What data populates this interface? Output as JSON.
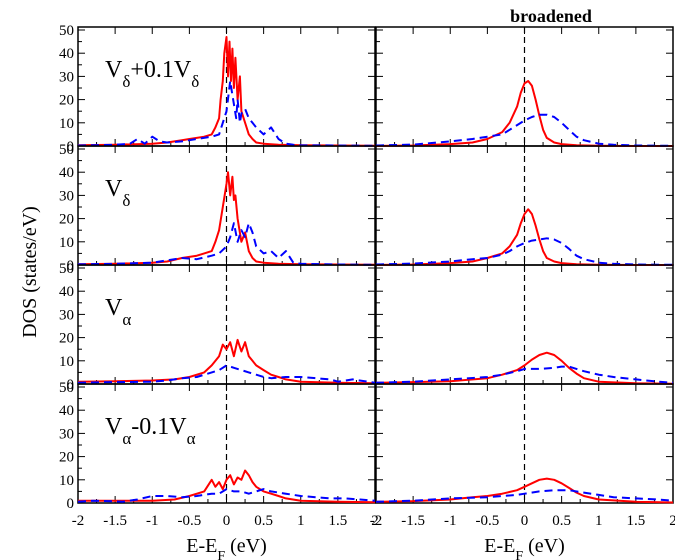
{
  "chart_data": {
    "type": "line",
    "title": "broadened",
    "xlabel": "E-E",
    "xlabel_sub": "F",
    "xlabel_unit": " (eV)",
    "ylabel": "DOS  (states/eV)",
    "xlim": [
      -2,
      2
    ],
    "ylim": [
      0,
      50
    ],
    "xticks": [
      -2,
      -1.5,
      -1,
      -0.5,
      0,
      0.5,
      1,
      1.5,
      2
    ],
    "yticks": [
      0,
      10,
      20,
      30,
      40,
      50
    ],
    "fermi_line": {
      "x": 0,
      "style": "dashed",
      "color": "#000000"
    },
    "colors": {
      "red": "#ff0000",
      "blue": "#0000ff"
    },
    "row_labels": [
      {
        "main": "V",
        "sub": "δ",
        "suffix": "+0.1V",
        "suffix_sub": "δ"
      },
      {
        "main": "V",
        "sub": "δ",
        "suffix": "",
        "suffix_sub": ""
      },
      {
        "main": "V",
        "sub": "α",
        "suffix": "",
        "suffix_sub": ""
      },
      {
        "main": "V",
        "sub": "α",
        "suffix": "-0.1V",
        "suffix_sub": "α"
      }
    ],
    "panels": [
      {
        "row": 0,
        "col": 0,
        "series": [
          {
            "color": "red",
            "style": "solid",
            "x": [
              -2,
              -1.5,
              -1,
              -0.8,
              -0.6,
              -0.5,
              -0.4,
              -0.3,
              -0.2,
              -0.15,
              -0.1,
              -0.08,
              -0.05,
              -0.03,
              0,
              0.02,
              0.04,
              0.06,
              0.08,
              0.1,
              0.12,
              0.15,
              0.18,
              0.2,
              0.25,
              0.3,
              0.35,
              0.4,
              0.5,
              0.7,
              1,
              1.5,
              2
            ],
            "y": [
              0.3,
              0.5,
              1,
              1.5,
              2.5,
              3,
              3.5,
              4,
              5,
              8,
              12,
              20,
              28,
              40,
              47,
              30,
              45,
              28,
              42,
              25,
              38,
              20,
              30,
              15,
              10,
              5,
              3,
              1.5,
              1,
              0.5,
              0.3,
              0.2,
              0.1
            ]
          },
          {
            "color": "blue",
            "style": "dashed",
            "x": [
              -2,
              -1.5,
              -1.3,
              -1.2,
              -1.1,
              -1,
              -0.9,
              -0.8,
              -0.6,
              -0.4,
              -0.2,
              -0.1,
              -0.05,
              0,
              0.05,
              0.08,
              0.1,
              0.13,
              0.15,
              0.18,
              0.2,
              0.25,
              0.3,
              0.35,
              0.4,
              0.5,
              0.6,
              0.7,
              0.8,
              0.9,
              1,
              1.5,
              2
            ],
            "y": [
              0.2,
              0.5,
              1,
              3,
              1,
              4,
              2,
              1.5,
              2,
              3,
              4,
              5,
              10,
              15,
              28,
              22,
              18,
              12,
              20,
              10,
              14,
              16,
              12,
              10,
              8,
              5,
              8,
              3,
              1,
              0.5,
              0.3,
              0.2,
              0.1
            ]
          }
        ]
      },
      {
        "row": 0,
        "col": 1,
        "series": [
          {
            "color": "red",
            "style": "solid",
            "x": [
              -2,
              -1.5,
              -1,
              -0.7,
              -0.5,
              -0.3,
              -0.2,
              -0.1,
              -0.05,
              0,
              0.05,
              0.1,
              0.15,
              0.2,
              0.25,
              0.3,
              0.4,
              0.5,
              0.7,
              1,
              1.5,
              2
            ],
            "y": [
              0,
              0.2,
              0.8,
              1.5,
              3,
              6,
              10,
              17,
              23,
              27,
              28,
              26,
              20,
              13,
              7,
              3.5,
              1.5,
              0.8,
              0.3,
              0.1,
              0,
              0
            ]
          },
          {
            "color": "blue",
            "style": "dashed",
            "x": [
              -2,
              -1.5,
              -1,
              -0.7,
              -0.5,
              -0.3,
              -0.2,
              -0.1,
              0,
              0.1,
              0.2,
              0.3,
              0.4,
              0.5,
              0.6,
              0.7,
              0.8,
              1,
              1.2,
              1.5,
              2
            ],
            "y": [
              0.2,
              0.6,
              2,
              3,
              4,
              5,
              7,
              9,
              11,
              12.5,
              13.5,
              13.5,
              12.5,
              10,
              7,
              4,
              2.5,
              1,
              0.5,
              0.2,
              0.1
            ]
          }
        ]
      },
      {
        "row": 1,
        "col": 0,
        "series": [
          {
            "color": "red",
            "style": "solid",
            "x": [
              -2,
              -1.5,
              -1,
              -0.8,
              -0.6,
              -0.4,
              -0.3,
              -0.2,
              -0.15,
              -0.1,
              -0.05,
              0,
              0.02,
              0.05,
              0.08,
              0.1,
              0.12,
              0.15,
              0.2,
              0.25,
              0.3,
              0.35,
              0.4,
              0.5,
              0.7,
              1,
              1.5,
              2
            ],
            "y": [
              0.3,
              0.5,
              1,
              1.5,
              3,
              4,
              5,
              6,
              10,
              15,
              25,
              35,
              40,
              30,
              38,
              28,
              30,
              20,
              10,
              14,
              6,
              3,
              1.5,
              1,
              0.5,
              0.3,
              0.2,
              0.1
            ]
          },
          {
            "color": "blue",
            "style": "dashed",
            "x": [
              -2,
              -1.5,
              -1,
              -0.8,
              -0.6,
              -0.4,
              -0.2,
              -0.1,
              0,
              0.05,
              0.1,
              0.15,
              0.2,
              0.25,
              0.3,
              0.35,
              0.4,
              0.5,
              0.6,
              0.7,
              0.8,
              0.9,
              1,
              1.5,
              2
            ],
            "y": [
              0.3,
              0.5,
              1,
              2,
              3,
              2.5,
              4,
              5,
              8,
              12,
              18,
              10,
              15,
              12,
              18,
              14,
              8,
              5,
              6,
              3,
              6,
              1,
              0.5,
              0.2,
              0.1
            ]
          }
        ]
      },
      {
        "row": 1,
        "col": 1,
        "series": [
          {
            "color": "red",
            "style": "solid",
            "x": [
              -2,
              -1.5,
              -1,
              -0.7,
              -0.5,
              -0.3,
              -0.2,
              -0.1,
              -0.05,
              0,
              0.05,
              0.1,
              0.15,
              0.2,
              0.25,
              0.3,
              0.4,
              0.5,
              0.7,
              1,
              1.5,
              2
            ],
            "y": [
              0,
              0.2,
              0.8,
              1.5,
              3,
              5,
              8,
              13,
              18,
              22,
              24,
              22,
              17,
              11,
              6,
              3,
              1.5,
              0.8,
              0.3,
              0.1,
              0,
              0
            ]
          },
          {
            "color": "blue",
            "style": "dashed",
            "x": [
              -2,
              -1.5,
              -1,
              -0.7,
              -0.5,
              -0.3,
              -0.2,
              -0.1,
              0,
              0.1,
              0.2,
              0.3,
              0.4,
              0.5,
              0.6,
              0.7,
              0.8,
              1,
              1.2,
              1.5,
              2
            ],
            "y": [
              0.2,
              0.6,
              1.5,
              2.5,
              3,
              4.5,
              6,
              8,
              9.5,
              10.5,
              11,
              11.5,
              11,
              9.5,
              7,
              4,
              2.5,
              1,
              0.5,
              0.2,
              0.1
            ]
          }
        ]
      },
      {
        "row": 2,
        "col": 0,
        "series": [
          {
            "color": "red",
            "style": "solid",
            "x": [
              -2,
              -1.5,
              -1,
              -0.7,
              -0.5,
              -0.3,
              -0.2,
              -0.1,
              -0.05,
              0,
              0.05,
              0.1,
              0.15,
              0.2,
              0.25,
              0.3,
              0.35,
              0.4,
              0.5,
              0.6,
              0.7,
              0.8,
              1,
              1.5,
              2
            ],
            "y": [
              1,
              1.2,
              1.5,
              2,
              3,
              5,
              8,
              12,
              17,
              15,
              18,
              12,
              19,
              14,
              18,
              12,
              10,
              8,
              6,
              4,
              3,
              2,
              1,
              0.5,
              0.3
            ]
          },
          {
            "color": "blue",
            "style": "dashed",
            "x": [
              -2,
              -1.5,
              -1,
              -0.8,
              -0.6,
              -0.4,
              -0.2,
              -0.1,
              0,
              0.1,
              0.2,
              0.3,
              0.4,
              0.5,
              0.6,
              0.8,
              1,
              1.2,
              1.4,
              1.5,
              1.7,
              1.9,
              2
            ],
            "y": [
              0.5,
              0.8,
              1,
              1.5,
              2.5,
              3,
              5,
              6,
              8,
              7,
              6,
              5,
              4,
              3,
              2.5,
              3,
              3,
              2.5,
              2,
              1,
              2,
              1,
              0.5
            ]
          }
        ]
      },
      {
        "row": 2,
        "col": 1,
        "series": [
          {
            "color": "red",
            "style": "solid",
            "x": [
              -2,
              -1.5,
              -1,
              -0.5,
              -0.3,
              -0.1,
              0,
              0.1,
              0.2,
              0.3,
              0.4,
              0.5,
              0.6,
              0.7,
              0.8,
              1,
              1.5,
              2
            ],
            "y": [
              0.5,
              0.8,
              1.2,
              2.5,
              4,
              6,
              8,
              10.5,
              12.5,
              13.5,
              12.5,
              10,
              7,
              4.5,
              2.5,
              1,
              0.3,
              0.1
            ]
          },
          {
            "color": "blue",
            "style": "dashed",
            "x": [
              -2,
              -1.5,
              -1,
              -0.5,
              -0.3,
              -0.1,
              0,
              0.2,
              0.4,
              0.5,
              0.6,
              0.7,
              0.8,
              1,
              1.2,
              1.5,
              1.8,
              2
            ],
            "y": [
              0.5,
              1,
              2,
              3,
              4,
              5.5,
              6.5,
              6.5,
              7,
              7.5,
              7.5,
              6.5,
              5.5,
              4,
              3,
              2,
              1,
              0.5
            ]
          }
        ]
      },
      {
        "row": 3,
        "col": 0,
        "series": [
          {
            "color": "red",
            "style": "solid",
            "x": [
              -2,
              -1.5,
              -1,
              -0.7,
              -0.5,
              -0.3,
              -0.2,
              -0.15,
              -0.1,
              -0.05,
              0,
              0.05,
              0.1,
              0.15,
              0.2,
              0.25,
              0.3,
              0.35,
              0.4,
              0.5,
              0.6,
              0.7,
              0.8,
              1,
              1.5,
              2
            ],
            "y": [
              1,
              1,
              1,
              1.5,
              3,
              5,
              10,
              7,
              9,
              6,
              10,
              12,
              8,
              11,
              10,
              14,
              12,
              9,
              7,
              5,
              4,
              3,
              2,
              1,
              0.5,
              0.3
            ]
          },
          {
            "color": "blue",
            "style": "dashed",
            "x": [
              -2,
              -1.8,
              -1.6,
              -1.4,
              -1.2,
              -1,
              -0.8,
              -0.6,
              -0.4,
              -0.2,
              -0.1,
              0,
              0.1,
              0.2,
              0.3,
              0.4,
              0.5,
              0.6,
              0.8,
              1,
              1.2,
              1.4,
              1.6,
              1.8,
              2
            ],
            "y": [
              0.5,
              1,
              0.8,
              0.5,
              1.5,
              3,
              3,
              2.5,
              3,
              4,
              4,
              6,
              5,
              5,
              4,
              5,
              6,
              5,
              4,
              3,
              2.5,
              2,
              2,
              1.5,
              1
            ]
          }
        ]
      },
      {
        "row": 3,
        "col": 1,
        "series": [
          {
            "color": "red",
            "style": "solid",
            "x": [
              -2,
              -1.5,
              -1,
              -0.7,
              -0.5,
              -0.3,
              -0.1,
              0,
              0.1,
              0.2,
              0.3,
              0.4,
              0.5,
              0.6,
              0.7,
              0.8,
              1,
              1.5,
              2
            ],
            "y": [
              0.5,
              0.8,
              1.5,
              2.5,
              3,
              4,
              5.5,
              7,
              8.5,
              10,
              10.5,
              10,
              8.5,
              6.5,
              4.5,
              3,
              1.5,
              0.5,
              0.2
            ]
          },
          {
            "color": "blue",
            "style": "dashed",
            "x": [
              -2,
              -1.5,
              -1,
              -0.5,
              -0.3,
              -0.1,
              0,
              0.2,
              0.4,
              0.6,
              0.8,
              1,
              1.2,
              1.5,
              1.8,
              2
            ],
            "y": [
              0.5,
              1,
              2,
              2.5,
              3,
              3.5,
              4,
              5,
              5.5,
              5.5,
              4.5,
              3.5,
              2.5,
              2,
              1.5,
              1
            ]
          }
        ]
      }
    ]
  }
}
